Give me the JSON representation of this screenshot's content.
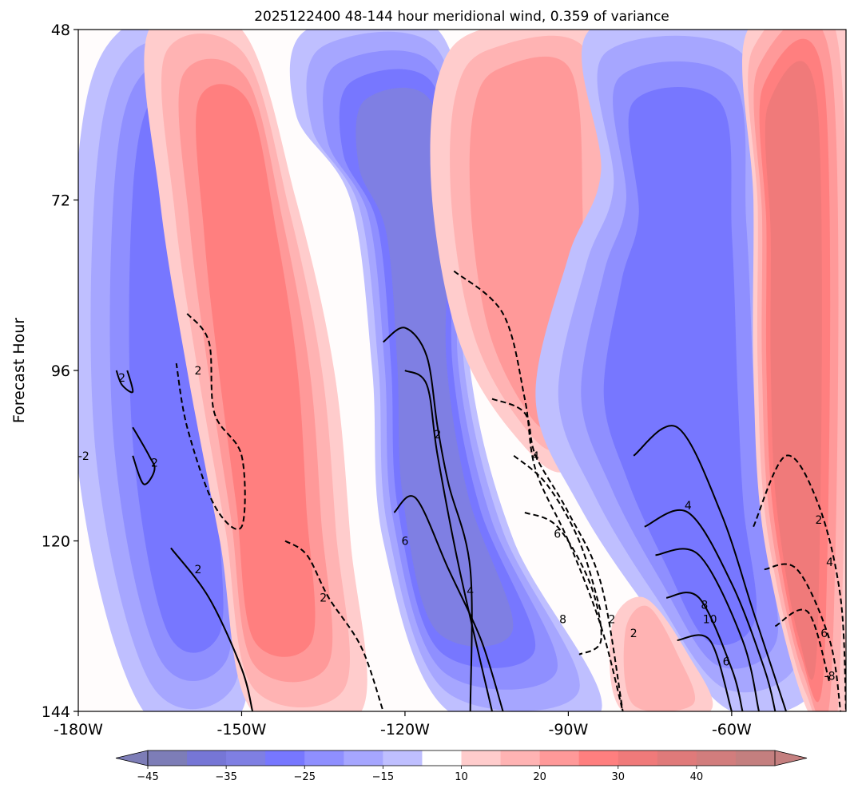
{
  "chart_data": {
    "type": "contour",
    "title": "2025122400 48-144 hour meridional wind, 0.359 of variance",
    "ylabel": "Forecast Hour",
    "xlabel": "",
    "x_ticks": [
      "-180W",
      "-150W",
      "-120W",
      "-90W",
      "-60W"
    ],
    "x_tick_values": [
      -180,
      -150,
      -120,
      -90,
      -60
    ],
    "y_ticks": [
      "48",
      "72",
      "96",
      "120",
      "144"
    ],
    "y_tick_values": [
      48,
      72,
      96,
      120,
      144
    ],
    "xlim": [
      -180,
      -39
    ],
    "ylim": [
      48,
      144
    ],
    "y_inverted": true,
    "colorbar": {
      "levels": [
        -50,
        -45,
        -40,
        -35,
        -30,
        -25,
        -20,
        -15,
        -10,
        10,
        15,
        20,
        25,
        30,
        35,
        40,
        45
      ],
      "tick_labels": [
        "−45",
        "−35",
        "−25",
        "−15",
        "10",
        "20",
        "30",
        "40"
      ],
      "tick_values": [
        -45,
        -35,
        -25,
        -15,
        10,
        20,
        30,
        40
      ],
      "colors": [
        "#7d7db7",
        "#7676d6",
        "#7f7fe3",
        "#7777ff",
        "#8f8fff",
        "#a6a6ff",
        "#bfbfff",
        "#ffffff",
        "#ffcccc",
        "#ffb3b3",
        "#ff9999",
        "#ff7f7f",
        "#f07a7a",
        "#e07a7a",
        "#d27d7d",
        "#c47f7f"
      ],
      "extend": "both"
    },
    "filled_bands": [
      {
        "sign": "negative",
        "label": "band-1",
        "strength": 3,
        "path": [
          [
            -172,
            48
          ],
          [
            -152,
            48
          ],
          [
            -147,
            60
          ],
          [
            -143,
            72
          ],
          [
            -143,
            96
          ],
          [
            -150,
            120
          ],
          [
            -150,
            144
          ],
          [
            -168,
            144
          ],
          [
            -180,
            110
          ],
          [
            -180,
            66
          ]
        ]
      },
      {
        "sign": "positive",
        "label": "band-2",
        "strength": 3,
        "path": [
          [
            -167,
            48
          ],
          [
            -150,
            48
          ],
          [
            -140,
            72
          ],
          [
            -133,
            96
          ],
          [
            -130,
            120
          ],
          [
            -128,
            144
          ],
          [
            -148,
            144
          ],
          [
            -154,
            120
          ],
          [
            -160,
            96
          ],
          [
            -165,
            72
          ]
        ]
      },
      {
        "sign": "negative",
        "label": "band-3",
        "strength": 4,
        "path": [
          [
            -138,
            48
          ],
          [
            -114,
            48
          ],
          [
            -108,
            72
          ],
          [
            -108,
            96
          ],
          [
            -100,
            120
          ],
          [
            -84,
            144
          ],
          [
            -112,
            144
          ],
          [
            -124,
            120
          ],
          [
            -126,
            96
          ],
          [
            -130,
            72
          ],
          [
            -140,
            60
          ]
        ]
      },
      {
        "sign": "positive",
        "label": "band-4",
        "strength": 2,
        "path": [
          [
            -106,
            48
          ],
          [
            -84,
            48
          ],
          [
            -80,
            72
          ],
          [
            -82,
            96
          ],
          [
            -90,
            110
          ],
          [
            -100,
            105
          ],
          [
            -110,
            92
          ],
          [
            -115,
            72
          ],
          [
            -114,
            55
          ]
        ]
      },
      {
        "sign": "negative",
        "label": "band-5",
        "strength": 3,
        "path": [
          [
            -86,
            48
          ],
          [
            -56,
            48
          ],
          [
            -52,
            72
          ],
          [
            -50,
            100
          ],
          [
            -48,
            120
          ],
          [
            -44,
            140
          ],
          [
            -60,
            144
          ],
          [
            -75,
            130
          ],
          [
            -88,
            115
          ],
          [
            -96,
            100
          ],
          [
            -90,
            80
          ],
          [
            -84,
            68
          ]
        ]
      },
      {
        "sign": "positive",
        "label": "band-6",
        "strength": 4,
        "path": [
          [
            -57,
            48
          ],
          [
            -39,
            48
          ],
          [
            -39,
            144
          ],
          [
            -46,
            144
          ],
          [
            -54,
            120
          ],
          [
            -56,
            96
          ],
          [
            -56,
            72
          ]
        ]
      },
      {
        "sign": "positive",
        "label": "band-7",
        "strength": 1,
        "path": [
          [
            -82,
            132
          ],
          [
            -76,
            128
          ],
          [
            -68,
            136
          ],
          [
            -64,
            144
          ],
          [
            -80,
            144
          ]
        ]
      }
    ],
    "contours": [
      {
        "level": -2,
        "style": "dashed",
        "points": [
          [
            -160,
            88
          ],
          [
            -156,
            92
          ],
          [
            -155,
            102
          ],
          [
            -150,
            108
          ],
          [
            -150,
            118
          ],
          [
            -155,
            115
          ],
          [
            -160,
            104
          ],
          [
            -162,
            95
          ]
        ]
      },
      {
        "level": 2,
        "style": "solid",
        "points": [
          [
            -173,
            96
          ],
          [
            -172,
            98
          ],
          [
            -170,
            99
          ],
          [
            -171,
            96
          ]
        ]
      },
      {
        "level": 2,
        "style": "solid",
        "points": [
          [
            -170,
            104
          ],
          [
            -167,
            108
          ],
          [
            -166,
            110
          ],
          [
            -168,
            112
          ],
          [
            -170,
            108
          ]
        ]
      },
      {
        "level": 2,
        "style": "solid",
        "points": [
          [
            -163,
            121
          ],
          [
            -156,
            128
          ],
          [
            -150,
            138
          ],
          [
            -148,
            144
          ]
        ]
      },
      {
        "level": -2,
        "style": "dashed",
        "points": [
          [
            -142,
            120
          ],
          [
            -138,
            122
          ],
          [
            -134,
            128
          ],
          [
            -128,
            135
          ],
          [
            -124,
            144
          ]
        ]
      },
      {
        "level": 2,
        "style": "solid",
        "points": [
          [
            -124,
            92
          ],
          [
            -120,
            90
          ],
          [
            -116,
            94
          ],
          [
            -114,
            104
          ],
          [
            -112,
            112
          ],
          [
            -108,
            124
          ],
          [
            -108,
            144
          ]
        ]
      },
      {
        "level": 6,
        "style": "solid",
        "points": [
          [
            -120,
            96
          ],
          [
            -116,
            98
          ],
          [
            -114,
            108
          ],
          [
            -110,
            124
          ],
          [
            -104,
            144
          ]
        ]
      },
      {
        "level": 4,
        "style": "solid",
        "points": [
          [
            -122,
            116
          ],
          [
            -118,
            114
          ],
          [
            -112,
            124
          ],
          [
            -106,
            134
          ],
          [
            -102,
            144
          ]
        ]
      },
      {
        "level": -2,
        "style": "dashed",
        "points": [
          [
            -111,
            82
          ],
          [
            -102,
            88
          ],
          [
            -98,
            100
          ],
          [
            -96,
            110
          ],
          [
            -90,
            120
          ],
          [
            -84,
            132
          ],
          [
            -80,
            144
          ]
        ]
      },
      {
        "level": -4,
        "style": "dashed",
        "points": [
          [
            -104,
            100
          ],
          [
            -98,
            102
          ],
          [
            -96,
            108
          ],
          [
            -90,
            116
          ],
          [
            -84,
            126
          ],
          [
            -80,
            144
          ]
        ]
      },
      {
        "level": -6,
        "style": "dashed",
        "points": [
          [
            -100,
            108
          ],
          [
            -94,
            112
          ],
          [
            -88,
            120
          ],
          [
            -84,
            130
          ]
        ]
      },
      {
        "level": -8,
        "style": "dashed",
        "points": [
          [
            -98,
            116
          ],
          [
            -92,
            118
          ],
          [
            -86,
            126
          ],
          [
            -84,
            134
          ],
          [
            -88,
            136
          ]
        ]
      },
      {
        "level": 2,
        "style": "solid",
        "points": [
          [
            -78,
            108
          ],
          [
            -70,
            104
          ],
          [
            -62,
            116
          ],
          [
            -56,
            130
          ],
          [
            -50,
            144
          ]
        ]
      },
      {
        "level": 4,
        "style": "solid",
        "points": [
          [
            -76,
            118
          ],
          [
            -68,
            116
          ],
          [
            -60,
            126
          ],
          [
            -54,
            138
          ],
          [
            -52,
            144
          ]
        ]
      },
      {
        "level": 6,
        "style": "solid",
        "points": [
          [
            -74,
            122
          ],
          [
            -66,
            122
          ],
          [
            -58,
            134
          ],
          [
            -55,
            144
          ]
        ]
      },
      {
        "level": 8,
        "style": "solid",
        "points": [
          [
            -72,
            128
          ],
          [
            -66,
            128
          ],
          [
            -60,
            138
          ],
          [
            -58,
            144
          ]
        ]
      },
      {
        "level": 10,
        "style": "solid",
        "points": [
          [
            -70,
            134
          ],
          [
            -64,
            134
          ],
          [
            -60,
            144
          ]
        ]
      },
      {
        "level": -2,
        "style": "dashed",
        "points": [
          [
            -56,
            118
          ],
          [
            -50,
            108
          ],
          [
            -44,
            115
          ],
          [
            -40,
            128
          ],
          [
            -39,
            144
          ]
        ]
      },
      {
        "level": -4,
        "style": "dashed",
        "points": [
          [
            -54,
            124
          ],
          [
            -48,
            124
          ],
          [
            -42,
            134
          ],
          [
            -40,
            144
          ]
        ]
      },
      {
        "level": -6,
        "style": "dashed",
        "points": [
          [
            -52,
            132
          ],
          [
            -46,
            130
          ],
          [
            -42,
            140
          ]
        ]
      }
    ],
    "contour_labels": [
      {
        "text": "2",
        "x": -172,
        "y": 97
      },
      {
        "text": "-2",
        "x": -179,
        "y": 108
      },
      {
        "text": "2",
        "x": -166,
        "y": 109
      },
      {
        "text": "2",
        "x": -158,
        "y": 96
      },
      {
        "text": "2",
        "x": -158,
        "y": 124
      },
      {
        "text": "2",
        "x": -135,
        "y": 128
      },
      {
        "text": "2",
        "x": -114,
        "y": 105
      },
      {
        "text": "6",
        "x": -120,
        "y": 120
      },
      {
        "text": "4",
        "x": -108,
        "y": 127
      },
      {
        "text": "4",
        "x": -96,
        "y": 108
      },
      {
        "text": "6",
        "x": -92,
        "y": 119
      },
      {
        "text": "8",
        "x": -91,
        "y": 131
      },
      {
        "text": "2",
        "x": -82,
        "y": 131
      },
      {
        "text": "2",
        "x": -78,
        "y": 133
      },
      {
        "text": "4",
        "x": -68,
        "y": 115
      },
      {
        "text": "8",
        "x": -65,
        "y": 129
      },
      {
        "text": "10",
        "x": -64,
        "y": 131
      },
      {
        "text": "6",
        "x": -61,
        "y": 137
      },
      {
        "text": "2",
        "x": -44,
        "y": 117
      },
      {
        "text": "4",
        "x": -42,
        "y": 123
      },
      {
        "text": "6",
        "x": -43,
        "y": 133
      },
      {
        "text": "-8",
        "x": -42,
        "y": 139
      }
    ]
  }
}
